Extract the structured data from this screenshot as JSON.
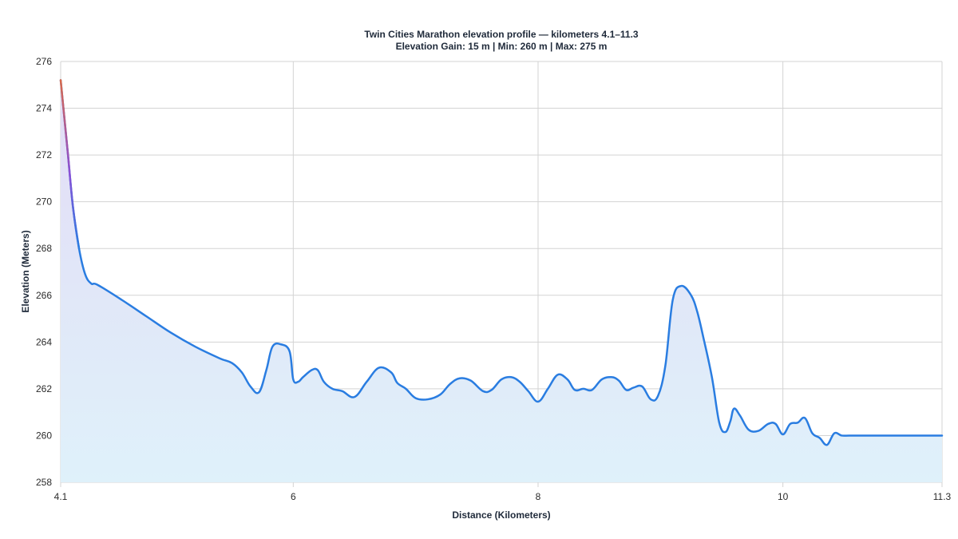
{
  "chart_data": {
    "type": "area",
    "title": "Twin Cities Marathon elevation profile — kilometers 4.1–11.3",
    "subtitle": "Elevation Gain: 15 m | Min: 260 m | Max: 275 m",
    "xlabel": "Distance (Kilometers)",
    "ylabel": "Elevation (Meters)",
    "xlim": [
      4.1,
      11.3
    ],
    "ylim": [
      258,
      276
    ],
    "x_ticks": [
      "4.1",
      "6",
      "8",
      "10",
      "11.3"
    ],
    "y_ticks": [
      "258",
      "260",
      "262",
      "264",
      "266",
      "268",
      "270",
      "272",
      "274",
      "276"
    ],
    "grid": true,
    "series": [
      {
        "x": [
          4.1,
          4.13,
          4.16,
          4.2,
          4.25,
          4.3,
          4.35,
          4.4,
          4.6,
          4.8,
          5.0,
          5.2,
          5.4,
          5.5,
          5.58,
          5.65,
          5.72,
          5.78,
          5.83,
          5.9,
          5.97,
          6.0,
          6.04,
          6.08,
          6.15,
          6.2,
          6.25,
          6.32,
          6.4,
          6.5,
          6.6,
          6.7,
          6.8,
          6.85,
          6.92,
          7.0,
          7.1,
          7.2,
          7.28,
          7.36,
          7.45,
          7.55,
          7.62,
          7.7,
          7.78,
          7.85,
          7.92,
          8.0,
          8.08,
          8.16,
          8.24,
          8.3,
          8.37,
          8.44,
          8.52,
          8.6,
          8.66,
          8.72,
          8.78,
          8.85,
          8.92,
          8.98,
          9.04,
          9.1,
          9.17,
          9.25,
          9.3,
          9.35,
          9.42,
          9.48,
          9.53,
          9.57,
          9.6,
          9.65,
          9.72,
          9.8,
          9.88,
          9.94,
          10.0,
          10.06,
          10.12,
          10.18,
          10.24,
          10.3,
          10.36,
          10.42,
          10.48,
          10.54,
          10.62,
          10.68,
          10.74,
          10.8,
          10.86,
          10.92,
          11.0,
          11.05,
          11.1,
          11.15,
          11.2,
          11.25,
          11.3
        ],
        "y": [
          275.2,
          273.6,
          272.0,
          269.8,
          268.0,
          266.9,
          266.5,
          266.45,
          265.8,
          265.1,
          264.4,
          263.8,
          263.3,
          263.1,
          262.7,
          262.1,
          261.85,
          262.8,
          263.8,
          263.9,
          263.6,
          262.4,
          262.3,
          262.5,
          262.8,
          262.8,
          262.3,
          262.0,
          261.9,
          261.65,
          262.3,
          262.9,
          262.7,
          262.25,
          262.0,
          261.6,
          261.55,
          261.75,
          262.2,
          262.45,
          262.35,
          261.9,
          261.95,
          262.4,
          262.5,
          262.3,
          261.9,
          261.45,
          262.0,
          262.6,
          262.4,
          261.95,
          262.0,
          261.95,
          262.4,
          262.5,
          262.35,
          261.95,
          262.05,
          262.1,
          261.55,
          261.7,
          263.0,
          265.8,
          266.4,
          266.0,
          265.3,
          264.2,
          262.5,
          260.55,
          260.15,
          260.6,
          261.15,
          260.85,
          260.25,
          260.2,
          260.5,
          260.5,
          260.05,
          260.5,
          260.55,
          260.75,
          260.1,
          259.9,
          259.6,
          260.1,
          260.0,
          260.0,
          260.0,
          260.0,
          260.0,
          260.0,
          260.0,
          260.0,
          260.0,
          260.0,
          260.0,
          260.0,
          260.0,
          260.0,
          260.0
        ]
      }
    ],
    "colors": {
      "line": "#2a7de1",
      "steep_top": "#d9694a",
      "steep_mid": "#8b4fd6",
      "fill_top": "#e3dcf6",
      "fill_bottom": "#dff1fa",
      "grid": "#d3d3d3"
    }
  }
}
